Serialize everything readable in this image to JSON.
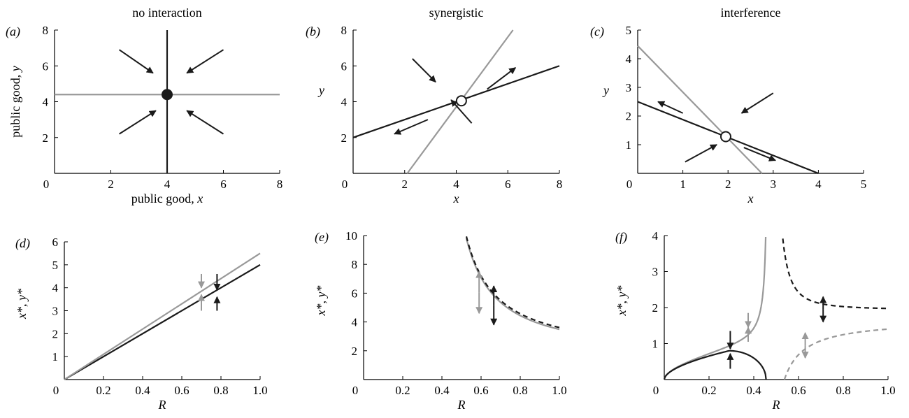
{
  "colors": {
    "black": "#1a1a1a",
    "gray": "#999999"
  },
  "panels": [
    {
      "id": "a",
      "label": "(a)",
      "title": "no interaction",
      "xlabel_parts": [
        {
          "t": "public good, "
        },
        {
          "t": "x",
          "i": true
        }
      ],
      "ylabel_parts": [
        {
          "t": "public good, "
        },
        {
          "t": "y",
          "i": true
        }
      ],
      "xlim": [
        0,
        8
      ],
      "ylim": [
        0,
        8
      ],
      "xticks": [
        "0",
        "2",
        "4",
        "6",
        "8"
      ],
      "yticks": [
        "2",
        "4",
        "6",
        "8"
      ]
    },
    {
      "id": "b",
      "label": "(b)",
      "title": "synergistic",
      "xlabel_parts": [
        {
          "t": "x",
          "i": true
        }
      ],
      "ylabel_parts": [
        {
          "t": "y",
          "i": true
        }
      ],
      "xlim": [
        0,
        8
      ],
      "ylim": [
        0,
        8
      ],
      "xticks": [
        "0",
        "2",
        "4",
        "6",
        "8"
      ],
      "yticks": [
        "2",
        "4",
        "6",
        "8"
      ]
    },
    {
      "id": "c",
      "label": "(c)",
      "title": "interference",
      "xlabel_parts": [
        {
          "t": "x",
          "i": true
        }
      ],
      "ylabel_parts": [
        {
          "t": "y",
          "i": true
        }
      ],
      "xlim": [
        0,
        5
      ],
      "ylim": [
        0,
        5
      ],
      "xticks": [
        "0",
        "1",
        "2",
        "3",
        "4",
        "5"
      ],
      "yticks": [
        "1",
        "2",
        "3",
        "4",
        "5"
      ]
    },
    {
      "id": "d",
      "label": "(d)",
      "title": "",
      "xlabel_parts": [
        {
          "t": "R",
          "i": true
        }
      ],
      "ylabel_parts": [
        {
          "t": "x*, y*",
          "i": true
        }
      ],
      "xlim": [
        0,
        1
      ],
      "ylim": [
        0,
        6
      ],
      "xticks": [
        "0",
        "0.2",
        "0.4",
        "0.6",
        "0.8",
        "1.0"
      ],
      "yticks": [
        "1",
        "2",
        "3",
        "4",
        "5",
        "6"
      ]
    },
    {
      "id": "e",
      "label": "(e)",
      "title": "",
      "xlabel_parts": [
        {
          "t": "R",
          "i": true
        }
      ],
      "ylabel_parts": [
        {
          "t": "x*, y*",
          "i": true
        }
      ],
      "xlim": [
        0,
        1
      ],
      "ylim": [
        0,
        10
      ],
      "xticks": [
        "0",
        "0.2",
        "0.4",
        "0.6",
        "0.8",
        "1.0"
      ],
      "yticks": [
        "2",
        "4",
        "6",
        "8",
        "10"
      ]
    },
    {
      "id": "f",
      "label": "(f)",
      "title": "",
      "xlabel_parts": [
        {
          "t": "R",
          "i": true
        }
      ],
      "ylabel_parts": [
        {
          "t": "x*, y*",
          "i": true
        }
      ],
      "xlim": [
        0,
        1
      ],
      "ylim": [
        0,
        4
      ],
      "xticks": [
        "0",
        "0.2",
        "0.4",
        "0.6",
        "0.8",
        "1.0"
      ],
      "yticks": [
        "1",
        "2",
        "3",
        "4"
      ]
    }
  ],
  "chart_data": [
    {
      "panel": "a",
      "type": "line",
      "series": [
        {
          "color": "black",
          "x": [
            4,
            4
          ],
          "y": [
            0,
            8
          ]
        },
        {
          "color": "gray",
          "x": [
            0,
            8
          ],
          "y": [
            4.4,
            4.4
          ]
        }
      ],
      "equilibrium": {
        "x": 4,
        "y": 4.4,
        "stable": true
      },
      "arrows": [
        [
          2.3,
          6.9,
          3.5,
          5.6
        ],
        [
          6,
          6.9,
          4.7,
          5.6
        ],
        [
          2.3,
          2.2,
          3.6,
          3.5
        ],
        [
          6,
          2.2,
          4.7,
          3.5
        ]
      ]
    },
    {
      "panel": "b",
      "type": "line",
      "series": [
        {
          "color": "black",
          "x": [
            0,
            8
          ],
          "y": [
            2,
            6
          ]
        },
        {
          "color": "gray",
          "x": [
            2.1,
            6.2
          ],
          "y": [
            0,
            8
          ]
        }
      ],
      "equilibrium": {
        "x": 4.2,
        "y": 4.05,
        "stable": false
      },
      "arrows": [
        [
          2.3,
          6.4,
          3.2,
          5.1
        ],
        [
          4.6,
          2.8,
          3.8,
          4.1
        ],
        [
          5.2,
          4.7,
          6.3,
          5.9
        ],
        [
          2.9,
          3.0,
          1.6,
          2.2
        ]
      ]
    },
    {
      "panel": "c",
      "type": "line",
      "series": [
        {
          "color": "black",
          "x": [
            0,
            4
          ],
          "y": [
            2.5,
            0
          ]
        },
        {
          "color": "gray",
          "x": [
            0,
            2.75
          ],
          "y": [
            4.45,
            0
          ]
        }
      ],
      "equilibrium": {
        "x": 1.95,
        "y": 1.28,
        "stable": false
      },
      "arrows": [
        [
          3.0,
          2.8,
          2.3,
          2.1
        ],
        [
          1.05,
          0.4,
          1.75,
          1.0
        ],
        [
          1.0,
          2.1,
          0.45,
          2.5
        ],
        [
          2.35,
          0.9,
          3.05,
          0.45
        ]
      ]
    },
    {
      "panel": "d",
      "type": "line",
      "series": [
        {
          "color": "black",
          "x": [
            0,
            1
          ],
          "y": [
            0,
            5
          ]
        },
        {
          "color": "gray",
          "x": [
            0,
            1
          ],
          "y": [
            0,
            5.5
          ]
        }
      ],
      "arrows": [
        {
          "color": "gray",
          "x": 0.7,
          "from": 4.6,
          "to": 4.0
        },
        {
          "color": "gray",
          "x": 0.7,
          "from": 3.0,
          "to": 3.7
        },
        {
          "color": "black",
          "x": 0.78,
          "from": 4.6,
          "to": 3.9
        },
        {
          "color": "black",
          "x": 0.78,
          "from": 3.0,
          "to": 3.6
        }
      ]
    },
    {
      "panel": "e",
      "type": "line",
      "series": [
        {
          "color": "gray",
          "dashed": false,
          "k": 5.0,
          "c": 0.3,
          "x0": 0.5,
          "x1": 1.0
        },
        {
          "color": "black",
          "dashed": true,
          "k": 5.0,
          "c": 0.35,
          "x0": 0.5,
          "x1": 1.0
        }
      ],
      "arrows": [
        {
          "color": "gray",
          "x": 0.59,
          "y_low": 4.6,
          "y_high": 7.5
        },
        {
          "color": "black",
          "x": 0.665,
          "y_low": 3.8,
          "y_high": 6.5
        }
      ]
    },
    {
      "panel": "f",
      "type": "line",
      "series": [
        {
          "color": "gray",
          "dashed": false,
          "kind": "gray_solid"
        },
        {
          "color": "black",
          "dashed": false,
          "kind": "black_solid"
        },
        {
          "color": "black",
          "dashed": true,
          "kind": "black_dashed"
        },
        {
          "color": "gray",
          "dashed": true,
          "kind": "gray_dashed"
        }
      ],
      "arrows": [
        {
          "color": "gray",
          "x": 0.375,
          "from": 1.85,
          "to": 1.45
        },
        {
          "color": "gray",
          "x": 0.375,
          "from": 1.05,
          "to": 1.45
        },
        {
          "color": "black",
          "x": 0.295,
          "from": 1.35,
          "to": 0.85
        },
        {
          "color": "black",
          "x": 0.295,
          "from": 0.3,
          "to": 0.72
        },
        {
          "color": "black",
          "x": 0.71,
          "y_low": 1.6,
          "y_high": 2.3
        },
        {
          "color": "gray",
          "x": 0.63,
          "y_low": 0.6,
          "y_high": 1.3
        }
      ]
    }
  ]
}
